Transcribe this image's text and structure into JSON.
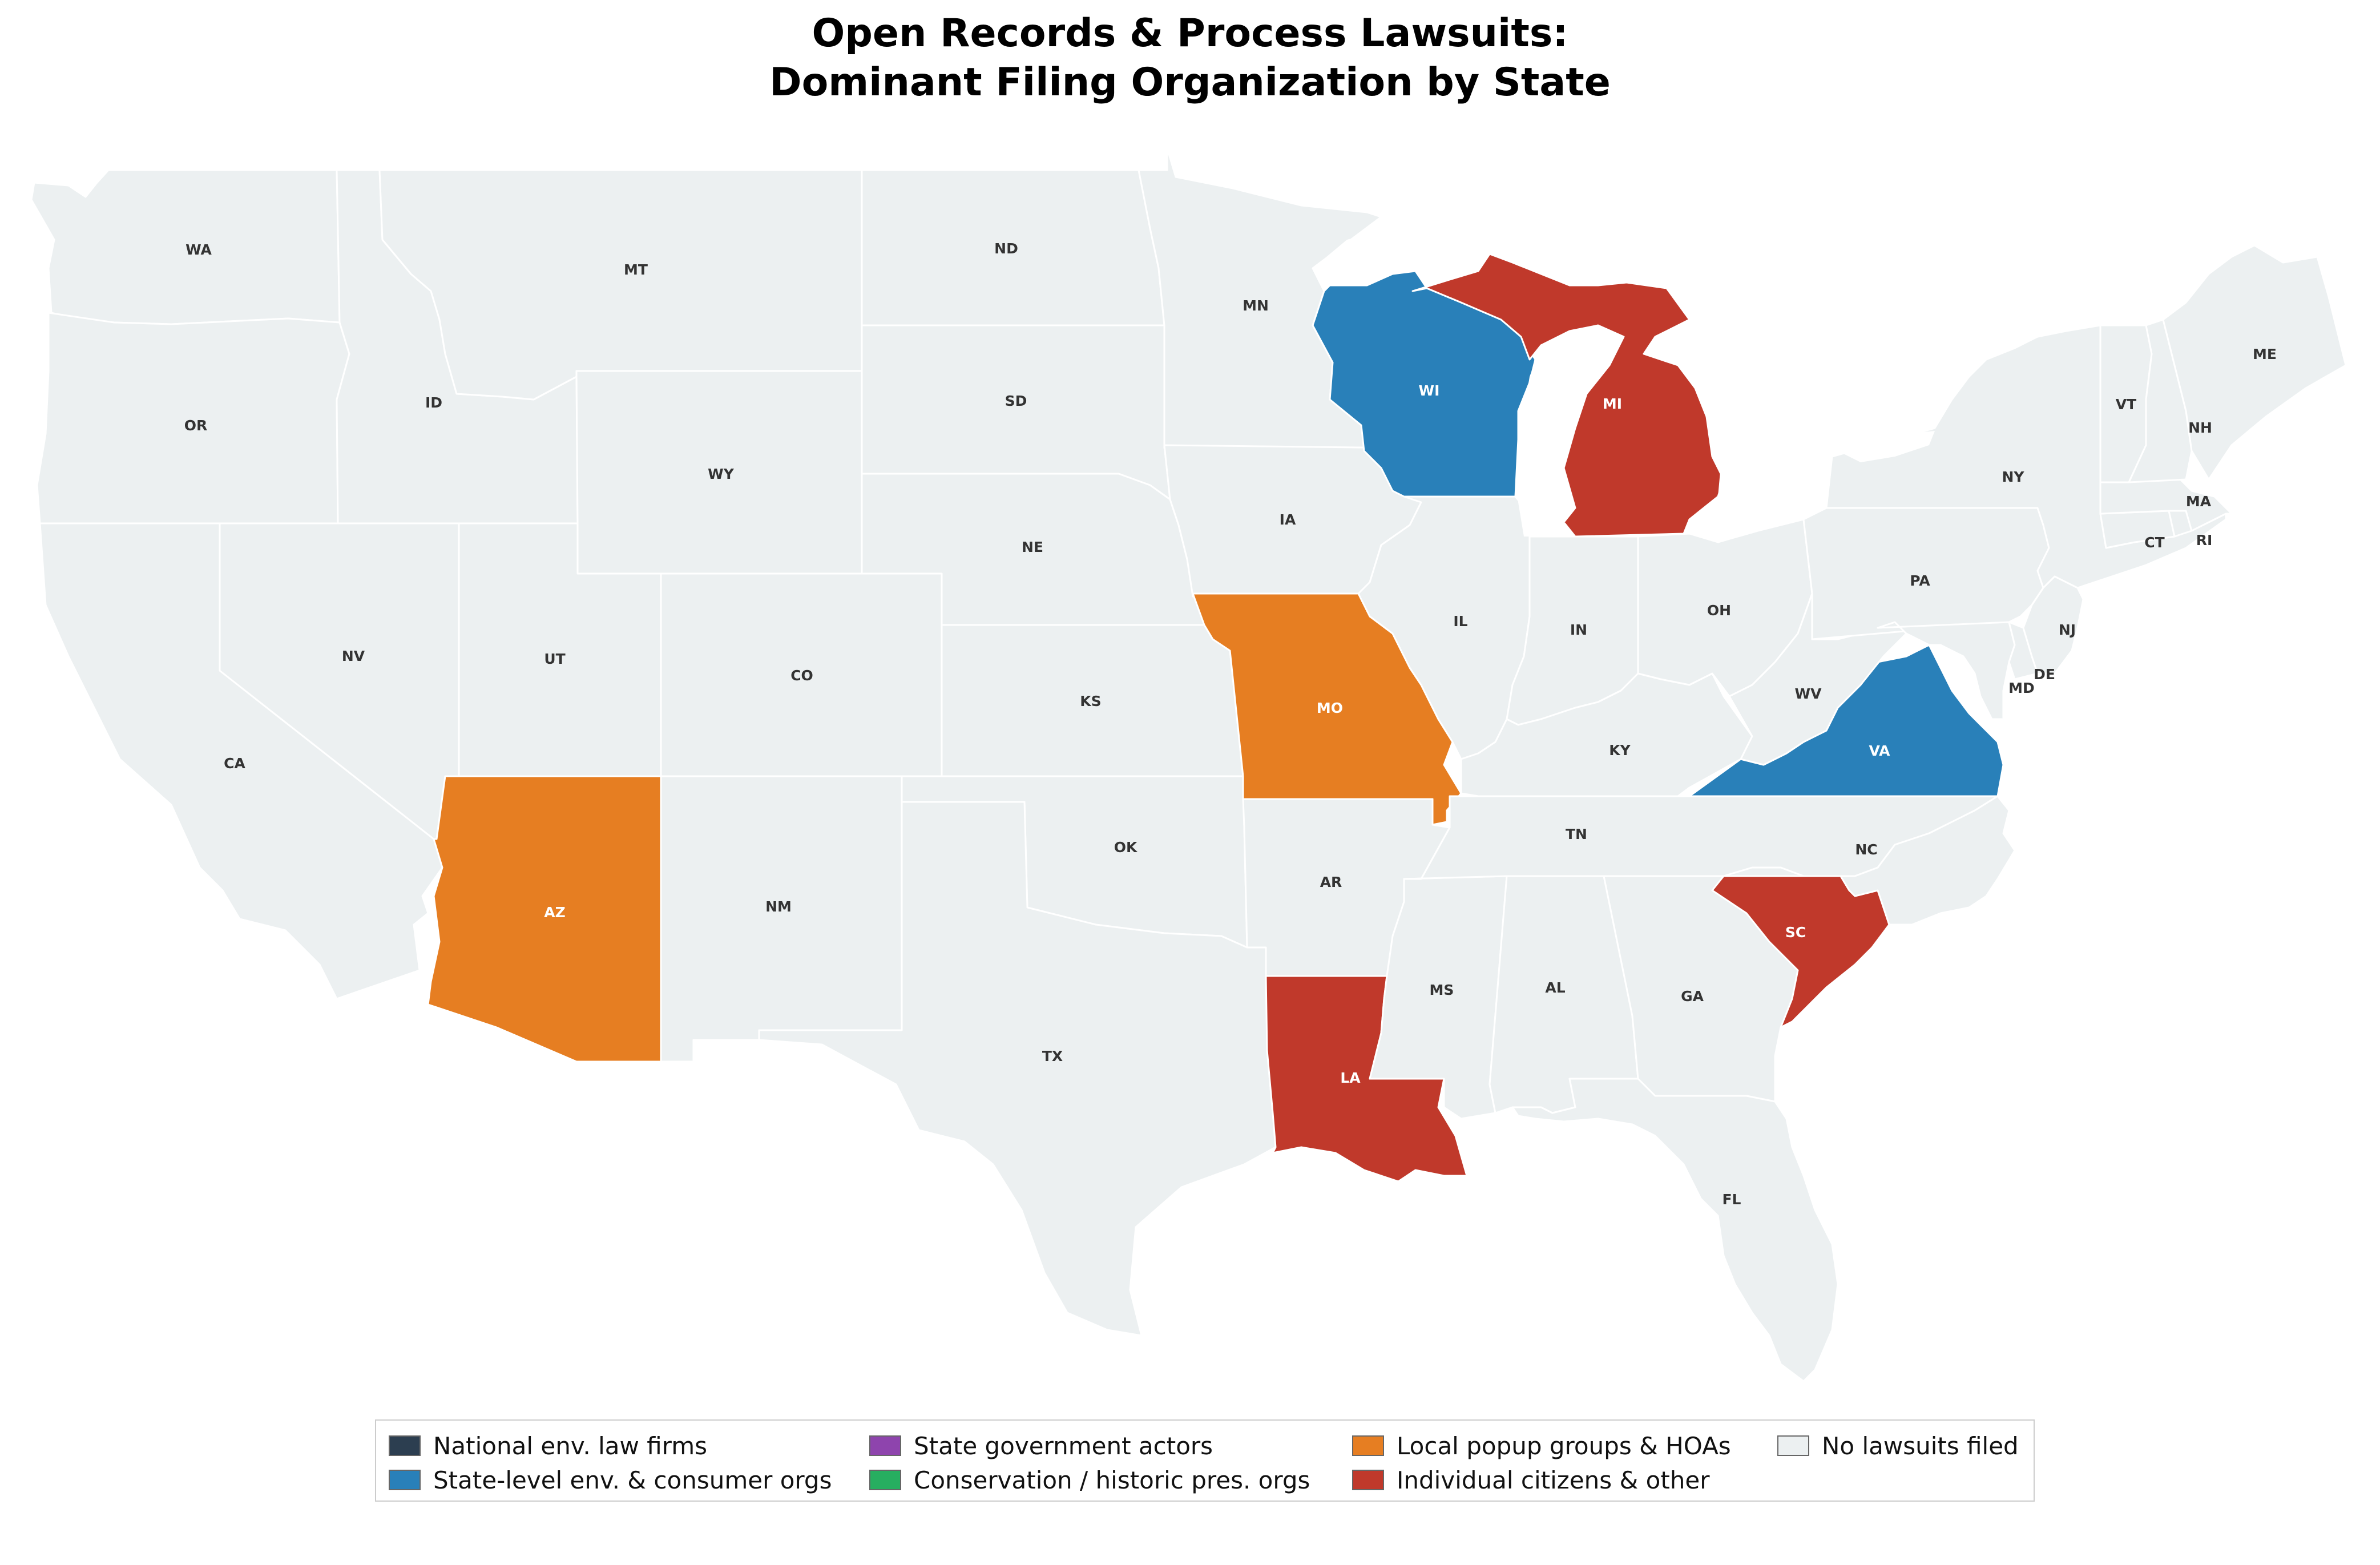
{
  "title_line1": "Open Records & Process Lawsuits:",
  "title_line2": "Dominant Filing Organization by State",
  "categories": {
    "national": {
      "label": "National env. law firms",
      "color": "#2c3e50"
    },
    "statelevel": {
      "label": "State-level env. & consumer orgs",
      "color": "#2980b9"
    },
    "govt": {
      "label": "State government actors",
      "color": "#8e44ad"
    },
    "conservation": {
      "label": "Conservation / historic pres. orgs",
      "color": "#27ae60"
    },
    "local": {
      "label": "Local popup groups & HOAs",
      "color": "#e67e22"
    },
    "individual": {
      "label": "Individual citizens & other",
      "color": "#c0392b"
    },
    "none": {
      "label": "No lawsuits filed",
      "color": "#ecf0f1"
    }
  },
  "state_categories": {
    "WA": "none",
    "OR": "none",
    "CA": "none",
    "ID": "none",
    "NV": "none",
    "MT": "none",
    "WY": "none",
    "UT": "none",
    "AZ": "local",
    "CO": "none",
    "NM": "none",
    "ND": "none",
    "SD": "none",
    "NE": "none",
    "KS": "none",
    "OK": "none",
    "TX": "none",
    "MN": "none",
    "IA": "none",
    "MO": "local",
    "AR": "none",
    "LA": "individual",
    "WI": "statelevel",
    "IL": "none",
    "MS": "none",
    "MI": "individual",
    "IN": "none",
    "KY": "none",
    "TN": "none",
    "AL": "none",
    "OH": "none",
    "GA": "none",
    "FL": "none",
    "SC": "individual",
    "NC": "none",
    "VA": "statelevel",
    "WV": "none",
    "PA": "none",
    "NY": "none",
    "MD": "none",
    "DE": "none",
    "NJ": "none",
    "CT": "none",
    "RI": "none",
    "MA": "none",
    "VT": "none",
    "NH": "none",
    "ME": "none"
  },
  "state_labels": [
    "WA",
    "OR",
    "CA",
    "ID",
    "NV",
    "MT",
    "WY",
    "UT",
    "AZ",
    "CO",
    "NM",
    "ND",
    "SD",
    "NE",
    "KS",
    "OK",
    "TX",
    "MN",
    "IA",
    "MO",
    "AR",
    "LA",
    "WI",
    "IL",
    "MS",
    "MI",
    "IN",
    "KY",
    "TN",
    "AL",
    "OH",
    "GA",
    "FL",
    "SC",
    "NC",
    "VA",
    "WV",
    "PA",
    "NY",
    "MD",
    "DE",
    "NJ",
    "CT",
    "RI",
    "MA",
    "VT",
    "NH",
    "ME"
  ],
  "legend": [
    {
      "label": "National env. law firms",
      "color": "#2c3e50"
    },
    {
      "label": "State-level env. & consumer orgs",
      "color": "#2980b9"
    },
    {
      "label": "State government actors",
      "color": "#8e44ad"
    },
    {
      "label": "Conservation / historic pres. orgs",
      "color": "#27ae60"
    },
    {
      "label": "Local popup groups & HOAs",
      "color": "#e67e22"
    },
    {
      "label": "Individual citizens & other",
      "color": "#c0392b"
    },
    {
      "label": "No lawsuits filed",
      "color": "#ecf0f1"
    }
  ]
}
